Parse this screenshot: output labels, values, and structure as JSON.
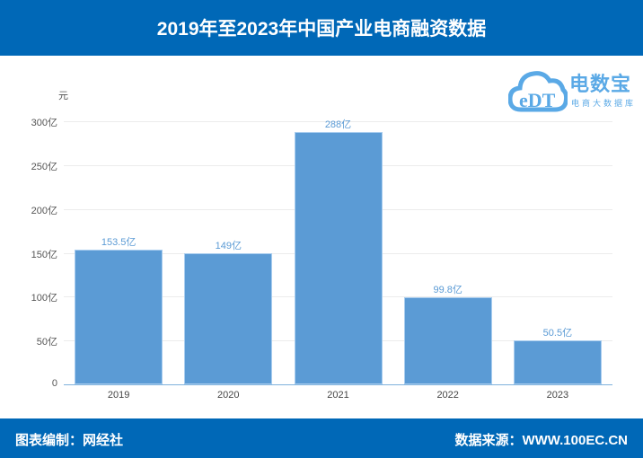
{
  "header": {
    "title": "2019年至2023年中国产业电商融资数据"
  },
  "logo": {
    "mark": "eDT",
    "name": "电数宝",
    "subtitle": "电商大数据库"
  },
  "footer": {
    "left": "图表编制：网经社",
    "right": "数据来源：WWW.100EC.CN"
  },
  "chart_data": {
    "type": "bar",
    "title": "2019年至2023年中国产业电商融资数据",
    "xlabel": "",
    "ylabel": "元",
    "categories": [
      "2019",
      "2020",
      "2021",
      "2022",
      "2023"
    ],
    "values": [
      153.5,
      149,
      288,
      99.8,
      50.5
    ],
    "value_labels": [
      "153.5亿",
      "149亿",
      "288亿",
      "99.8亿",
      "50.5亿"
    ],
    "unit": "亿元",
    "ylim": [
      0,
      300
    ],
    "yticks": [
      0,
      50,
      100,
      150,
      200,
      250,
      300
    ],
    "ytick_labels": [
      "0",
      "50亿",
      "100亿",
      "150亿",
      "200亿",
      "250亿",
      "300亿"
    ],
    "grid": true,
    "legend": "none",
    "bar_color": "#5b9bd5"
  }
}
